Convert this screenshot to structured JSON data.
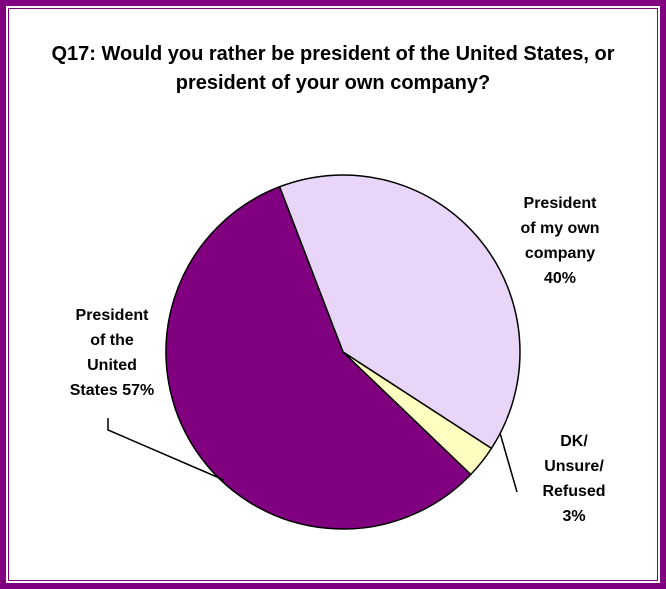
{
  "chart_data": {
    "type": "pie",
    "title": "Q17: Would you rather be president of the United States, or president of your own company?",
    "slices": [
      {
        "label": "President of my own company",
        "value": 40,
        "value_label": "40%",
        "label_lines": [
          "President",
          "of my own",
          "company",
          "40%"
        ],
        "color": "#e8d5f7"
      },
      {
        "label": "DK/ Unsure/ Refused",
        "value": 3,
        "value_label": "3%",
        "label_lines": [
          "DK/",
          "Unsure/",
          "Refused",
          "3%"
        ],
        "color": "#ffffc2"
      },
      {
        "label": "President of the United States",
        "value": 57,
        "value_label": "57%",
        "label_lines": [
          "President",
          "of the",
          "United",
          "States 57%"
        ],
        "color": "#800080"
      }
    ],
    "legend": "none",
    "start_angle_deg": -111,
    "direction": "clockwise",
    "border_color": "#800080"
  }
}
